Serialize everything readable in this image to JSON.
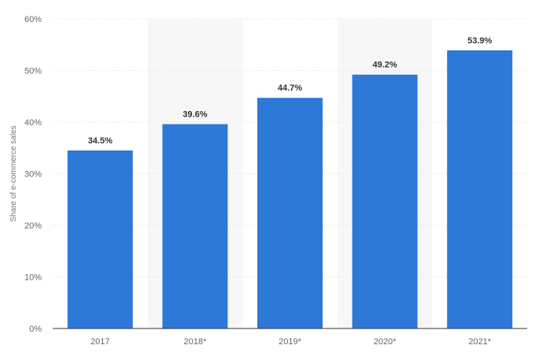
{
  "chart_data": {
    "type": "bar",
    "categories": [
      "2017",
      "2018*",
      "2019*",
      "2020*",
      "2021*"
    ],
    "values": [
      34.5,
      39.6,
      44.7,
      49.2,
      53.9
    ],
    "value_labels": [
      "34.5%",
      "39.6%",
      "44.7%",
      "49.2%",
      "53.9%"
    ],
    "title": "",
    "xlabel": "",
    "ylabel": "Share of e-commerce sales",
    "ylim": [
      0,
      60
    ],
    "yticks": [
      0,
      10,
      20,
      30,
      40,
      50,
      60
    ],
    "ytick_labels": [
      "0%",
      "10%",
      "20%",
      "30%",
      "40%",
      "50%",
      "60%"
    ],
    "grid": true,
    "shaded_bands": [
      "2018*",
      "2020*"
    ],
    "colors": {
      "bar": "#2E78D8",
      "band": "#F7F7F7",
      "grid": "#E3E3E3",
      "axis": "#333333"
    }
  }
}
